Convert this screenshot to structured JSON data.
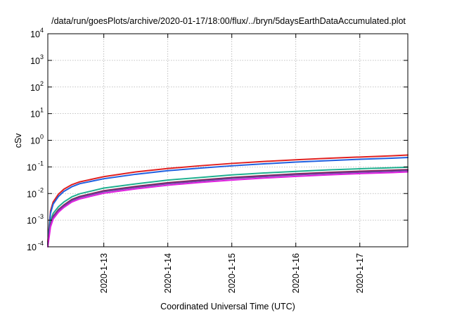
{
  "chart_data": {
    "type": "line",
    "title": "/data/run/goesPlots/archive/2020-01-17/18:00/flux/../bryn/5daysEarthDataAccumulated.plot",
    "xlabel": "Coordinated Universal Time (UTC)",
    "ylabel": "cSv",
    "yscale": "log",
    "ylim": [
      0.0001,
      10000
    ],
    "xlim": [
      "2020-01-12T03:00",
      "2020-01-17T18:00"
    ],
    "grid": true,
    "legend": "none",
    "x_ticks": [
      "2020-1-13",
      "2020-1-14",
      "2020-1-15",
      "2020-1-16",
      "2020-1-17"
    ],
    "y_ticks": [
      {
        "base": "10",
        "exp": "-4",
        "value": 0.0001
      },
      {
        "base": "10",
        "exp": "-3",
        "value": 0.001
      },
      {
        "base": "10",
        "exp": "-2",
        "value": 0.01
      },
      {
        "base": "10",
        "exp": "-1",
        "value": 0.1
      },
      {
        "base": "10",
        "exp": "0",
        "value": 1
      },
      {
        "base": "10",
        "exp": "1",
        "value": 10
      },
      {
        "base": "10",
        "exp": "2",
        "value": 100
      },
      {
        "base": "10",
        "exp": "3",
        "value": 1000
      },
      {
        "base": "10",
        "exp": "4",
        "value": 10000
      }
    ],
    "x": [
      "2020-01-12T03:00",
      "2020-01-12T04:00",
      "2020-01-12T05:00",
      "2020-01-12T07:00",
      "2020-01-12T09:00",
      "2020-01-12T12:00",
      "2020-01-12T15:00",
      "2020-01-13T00:00",
      "2020-01-13T12:00",
      "2020-01-14T00:00",
      "2020-01-14T12:00",
      "2020-01-15T00:00",
      "2020-01-15T12:00",
      "2020-01-16T00:00",
      "2020-01-16T12:00",
      "2020-01-17T00:00",
      "2020-01-17T12:00",
      "2020-01-17T18:00"
    ],
    "series": [
      {
        "color": "#e02020",
        "values": [
          0.00015,
          0.0022,
          0.0048,
          0.0095,
          0.0145,
          0.0215,
          0.0275,
          0.043,
          0.065,
          0.087,
          0.11,
          0.135,
          0.16,
          0.185,
          0.21,
          0.235,
          0.26,
          0.28
        ]
      },
      {
        "color": "#2060e0",
        "values": [
          0.00012,
          0.0018,
          0.004,
          0.0078,
          0.012,
          0.018,
          0.0235,
          0.036,
          0.053,
          0.072,
          0.09,
          0.11,
          0.13,
          0.152,
          0.172,
          0.193,
          0.212,
          0.225
        ]
      },
      {
        "color": "#20b090",
        "values": [
          0.00012,
          0.0009,
          0.0018,
          0.0032,
          0.0048,
          0.0075,
          0.0098,
          0.016,
          0.023,
          0.032,
          0.04,
          0.05,
          0.059,
          0.068,
          0.077,
          0.085,
          0.093,
          0.098
        ]
      },
      {
        "color": "#802050",
        "values": [
          0.00012,
          0.0007,
          0.0014,
          0.0025,
          0.0037,
          0.006,
          0.0078,
          0.0128,
          0.0185,
          0.0255,
          0.032,
          0.04,
          0.047,
          0.055,
          0.062,
          0.069,
          0.075,
          0.079
        ]
      },
      {
        "color": "#7040a0",
        "values": [
          0.00012,
          0.00065,
          0.0013,
          0.0023,
          0.0034,
          0.0055,
          0.0072,
          0.0118,
          0.017,
          0.0235,
          0.0295,
          0.037,
          0.0435,
          0.0505,
          0.057,
          0.0635,
          0.069,
          0.073
        ]
      },
      {
        "color": "#e020e0",
        "values": [
          0.0001,
          0.00055,
          0.0011,
          0.002,
          0.003,
          0.0048,
          0.0063,
          0.0103,
          0.015,
          0.0205,
          0.026,
          0.032,
          0.038,
          0.044,
          0.05,
          0.056,
          0.061,
          0.065
        ]
      }
    ]
  }
}
